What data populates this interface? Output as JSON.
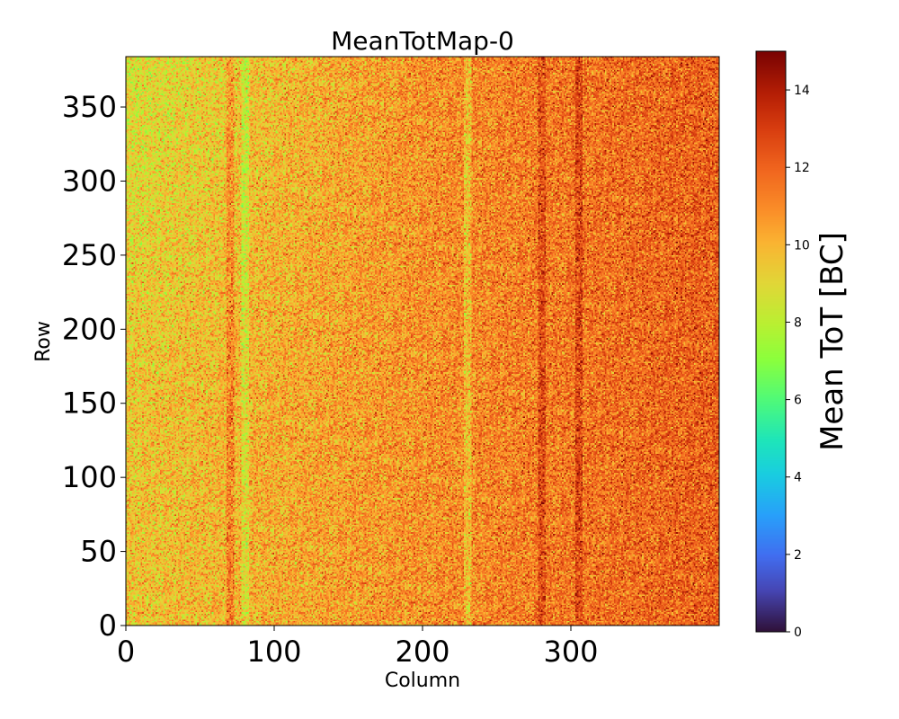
{
  "chart_data": {
    "type": "heatmap",
    "title": "MeanTotMap-0",
    "xlabel": "Column",
    "ylabel": "Row",
    "xlim": [
      0,
      400
    ],
    "ylim": [
      0,
      384
    ],
    "xticks": [
      0,
      100,
      200,
      300
    ],
    "yticks": [
      0,
      50,
      100,
      150,
      200,
      250,
      300,
      350
    ],
    "n_columns": 400,
    "n_rows": 384,
    "colorbar": {
      "label": "Mean ToT [BC]",
      "range": [
        0,
        15
      ],
      "ticks": [
        0,
        2,
        4,
        6,
        8,
        10,
        12,
        14
      ],
      "colormap": "turbo"
    },
    "value_summary": {
      "typical_range": [
        7,
        15
      ],
      "trend": "values increase from left (about 9) to right (about 12); upper-left corner lowest (about 8)",
      "vertical_bands": [
        {
          "column": 70,
          "level": "high"
        },
        {
          "column": 80,
          "level": "low"
        },
        {
          "column": 230,
          "level": "low"
        },
        {
          "column": 280,
          "level": "high"
        },
        {
          "column": 305,
          "level": "high"
        }
      ]
    }
  }
}
